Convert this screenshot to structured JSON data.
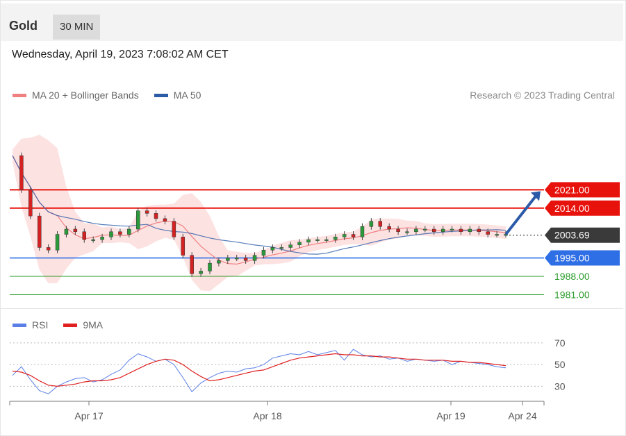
{
  "header": {
    "title": "Gold",
    "timeframe": "30 MIN"
  },
  "datetime": "Wednesday, April 19, 2023 7:08:02 AM CET",
  "legend": {
    "ma20_label": "MA 20 + Bollinger Bands",
    "ma50_label": "MA 50",
    "rsi_label": "RSI",
    "rsi_ma_label": "9MA"
  },
  "credit": "Research © 2023 Trading Central",
  "colors": {
    "resistance": "#e8120c",
    "support": "#2f6fe6",
    "support_minor": "#2a9b2a",
    "ma20": "#f08080",
    "ma50": "#2b5aa7",
    "bollinger_fill": "#fde2e2",
    "candle_up": "#2b9a3a",
    "candle_down": "#d42222",
    "rsi": "#5a7fe6",
    "rsi_ma": "#e02020",
    "current_price_tag": "#3a3a3a",
    "arrow": "#2b5aa7"
  },
  "chart_data": [
    {
      "type": "candlestick",
      "title": "Gold",
      "timeframe": "30 MIN",
      "ylim": [
        1979,
        2051
      ],
      "x_tick_labels": [
        "Apr 17",
        "Apr 18",
        "Apr 19",
        "Apr 24"
      ],
      "close_series": {
        "name": "Gold",
        "x": [
          0,
          3,
          6,
          9,
          12,
          15,
          18,
          21,
          24,
          27,
          30,
          33,
          36,
          39,
          42,
          45,
          48,
          51,
          54,
          57,
          60,
          63,
          66,
          69,
          72,
          75,
          78,
          81,
          84,
          87,
          90,
          93,
          96,
          99,
          102,
          105,
          108,
          111,
          114,
          117,
          120,
          123,
          126,
          129,
          132,
          135,
          138,
          141,
          144,
          147,
          150,
          153,
          156,
          159,
          162,
          165
        ],
        "values": [
          2034,
          2021,
          2011,
          1999,
          1998,
          2004,
          2006,
          2005,
          2002,
          2002,
          2003,
          2005,
          2004,
          2006,
          2013,
          2012,
          2010,
          2009,
          2003,
          1996,
          1989,
          1990,
          1993,
          1994,
          1995,
          1995,
          1994,
          1996,
          1998,
          1999,
          1999,
          2000,
          2001,
          2002,
          2002,
          2002,
          2003,
          2004,
          2003,
          2007,
          2009,
          2007,
          2006,
          2005,
          2005,
          2006,
          2006,
          2005,
          2006,
          2006,
          2005,
          2006,
          2005,
          2004,
          2004,
          2004
        ]
      },
      "levels": [
        {
          "name": "resistance_2",
          "value": 2021.0,
          "label": "2021.00"
        },
        {
          "name": "resistance_1",
          "value": 2014.0,
          "label": "2014.00"
        },
        {
          "name": "current_price",
          "value": 2003.69,
          "label": "2003.69"
        },
        {
          "name": "support_1",
          "value": 1995.0,
          "label": "1995.00"
        },
        {
          "name": "support_2",
          "value": 1988.0,
          "label": "1988.00"
        },
        {
          "name": "support_3",
          "value": 1981.0,
          "label": "1981.00"
        }
      ],
      "series": [
        {
          "name": "MA 20 + Bollinger Bands",
          "type": "line"
        },
        {
          "name": "MA 50",
          "type": "line"
        }
      ]
    },
    {
      "type": "line",
      "ylim": [
        20,
        75
      ],
      "y_tick_labels": [
        "70",
        "50",
        "30"
      ],
      "y_ticks": [
        70,
        50,
        30
      ],
      "series": [
        {
          "name": "RSI",
          "values": [
            40,
            48,
            36,
            26,
            23,
            30,
            34,
            37,
            38,
            34,
            36,
            41,
            45,
            54,
            60,
            57,
            53,
            55,
            50,
            38,
            25,
            33,
            38,
            42,
            44,
            43,
            46,
            47,
            50,
            56,
            58,
            60,
            59,
            62,
            59,
            61,
            63,
            54,
            64,
            59,
            57,
            58,
            55,
            56,
            53,
            55,
            54,
            53,
            54,
            50,
            53,
            52,
            51,
            50,
            48,
            47
          ]
        },
        {
          "name": "9MA",
          "values": [
            44,
            43,
            40,
            35,
            31,
            30,
            31,
            32,
            34,
            35,
            35,
            36,
            38,
            42,
            46,
            50,
            53,
            55,
            54,
            50,
            44,
            39,
            35,
            36,
            38,
            40,
            42,
            44,
            45,
            48,
            51,
            54,
            56,
            57,
            58,
            59,
            60,
            59,
            59,
            58,
            58,
            57,
            57,
            56,
            55,
            55,
            54,
            54,
            54,
            53,
            53,
            52,
            52,
            51,
            50,
            49
          ]
        }
      ]
    }
  ]
}
